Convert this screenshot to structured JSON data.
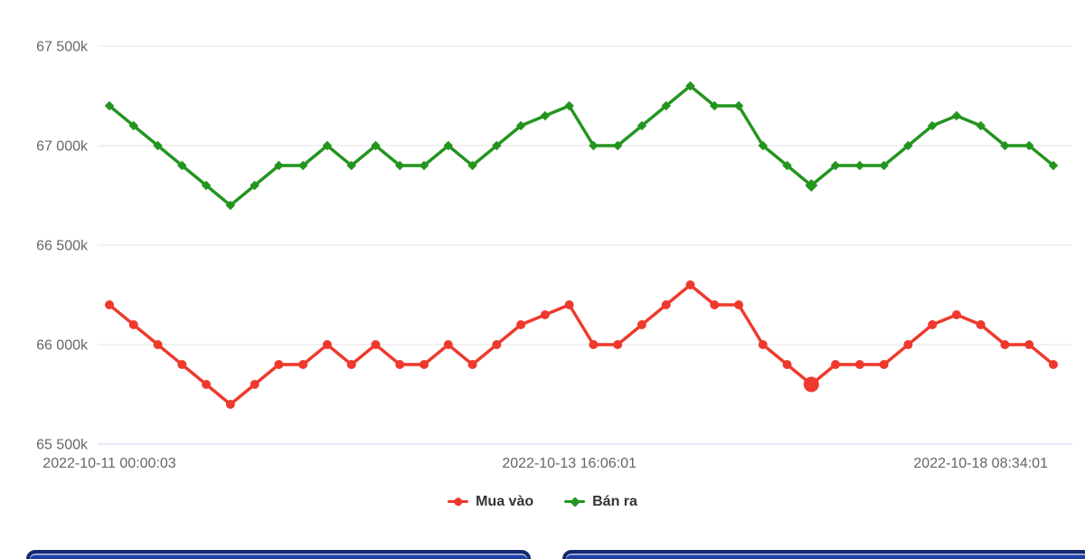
{
  "chart_data": {
    "type": "line",
    "title": "",
    "n_points": 40,
    "grid": "horizontal",
    "legend_position": "bottom",
    "y_axis": {
      "min": 65500,
      "max": 67500,
      "tick_values": [
        67500,
        67000,
        66500,
        66000,
        65500
      ],
      "tick_labels": [
        "67 500k",
        "67 000k",
        "66 500k",
        "66 000k",
        "65 500k"
      ]
    },
    "x_axis": {
      "tick_labels": [
        "2022-10-11 00:00:03",
        "2022-10-13 16:06:01",
        "2022-10-18 08:34:01"
      ],
      "tick_point_indexes": [
        0,
        19,
        36
      ]
    },
    "series": [
      {
        "name": "Mua vào",
        "color": "#ee392c",
        "marker": "circle",
        "highlight_index": 29,
        "values": [
          66200,
          66100,
          66000,
          65900,
          65800,
          65700,
          65800,
          65900,
          65900,
          66000,
          65900,
          66000,
          65900,
          65900,
          66000,
          65900,
          66000,
          66100,
          66150,
          66200,
          66000,
          66000,
          66100,
          66200,
          66300,
          66200,
          66200,
          66000,
          65900,
          65800,
          65900,
          65900,
          65900,
          66000,
          66100,
          66150,
          66100,
          66000,
          66000,
          65900
        ]
      },
      {
        "name": "Bán ra",
        "color": "#23951f",
        "marker": "diamond",
        "highlight_index": 29,
        "values": [
          67200,
          67100,
          67000,
          66900,
          66800,
          66700,
          66800,
          66900,
          66900,
          67000,
          66900,
          67000,
          66900,
          66900,
          67000,
          66900,
          67000,
          67100,
          67150,
          67200,
          67000,
          67000,
          67100,
          67200,
          67300,
          67200,
          67200,
          67000,
          66900,
          66800,
          66900,
          66900,
          66900,
          67000,
          67100,
          67150,
          67100,
          67000,
          67000,
          66900
        ]
      }
    ]
  },
  "colors": {
    "background": "#ffffff",
    "grid_line": "#e6e6e6",
    "axis_line": "#ccd6eb",
    "tick_label": "#666666",
    "legend_text": "#333333",
    "panel_fill": "#1e3fa4",
    "panel_border": "#16296e"
  }
}
